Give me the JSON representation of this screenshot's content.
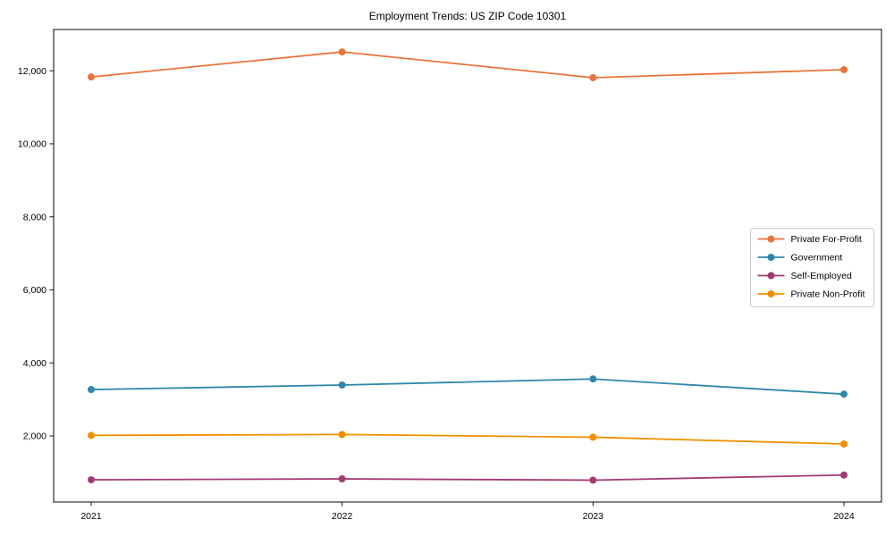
{
  "chart_data": {
    "type": "line",
    "title": "Employment Trends: US ZIP Code 10301",
    "xlabel": "",
    "ylabel": "",
    "x": [
      2021,
      2022,
      2023,
      2024
    ],
    "xtick_labels": [
      "2021",
      "2022",
      "2023",
      "2024"
    ],
    "series": [
      {
        "name": "Private For-Profit",
        "color": "#E8743B",
        "values": [
          11830,
          12515,
          11810,
          12030
        ]
      },
      {
        "name": "Government",
        "color": "#2E86AB",
        "values": [
          3270,
          3395,
          3560,
          3145
        ]
      },
      {
        "name": "Self-Employed",
        "color": "#A23B72",
        "values": [
          800,
          825,
          790,
          930
        ]
      },
      {
        "name": "Private Non-Profit",
        "color": "#F18F01",
        "values": [
          2015,
          2040,
          1965,
          1780
        ]
      }
    ],
    "ylim": [
      190,
      13130
    ],
    "yticks": [
      2000,
      4000,
      6000,
      8000,
      10000,
      12000
    ],
    "ytick_labels": [
      "2,000",
      "4,000",
      "6,000",
      "8,000",
      "10,000",
      "12,000"
    ],
    "grid": false,
    "legend_position": "center right",
    "marker": "circle",
    "line_width": 1.8,
    "marker_radius": 4,
    "background_color": "#ffffff",
    "axis_color": "#000000",
    "legend_border_color": "#cccccc"
  }
}
